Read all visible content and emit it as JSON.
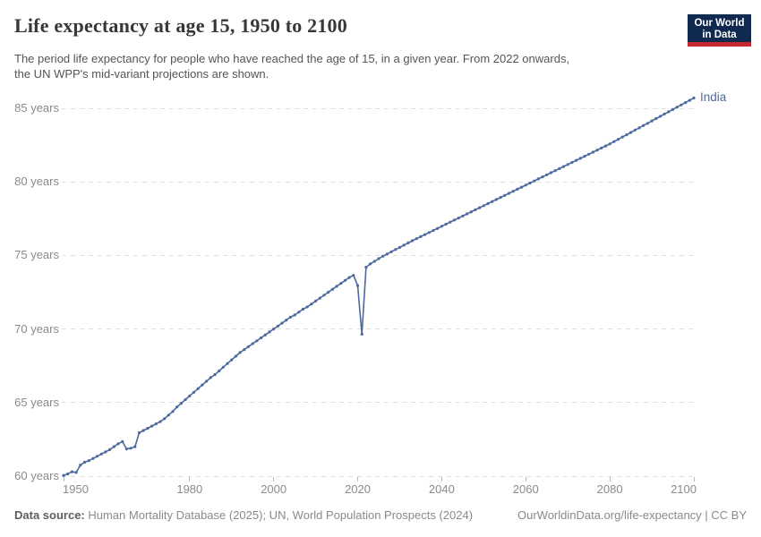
{
  "header": {
    "title": "Life expectancy at age 15, 1950 to 2100",
    "subtitle_lines": [
      "The period life expectancy for people who have reached the age of 15, in a given year. From 2022 onwards,",
      "the UN WPP's mid-variant projections are shown."
    ],
    "logo": {
      "line1": "Our World",
      "line2": "in Data",
      "bg_color": "#10294e",
      "accent_color": "#c4272e"
    }
  },
  "footer": {
    "source_label": "Data source:",
    "source_text": " Human Mortality Database (2025); UN, World Population Prospects (2024)",
    "link_text": "OurWorldinData.org/life-expectancy | CC BY"
  },
  "chart_data": {
    "type": "line",
    "title": "Life expectancy at age 15, 1950 to 2100",
    "xlabel": "",
    "ylabel": "",
    "grid": "horizontal-dashed",
    "legend_position": "end-of-line-label",
    "xlim": [
      1950,
      2100
    ],
    "ylim": [
      60,
      86
    ],
    "x_ticks": [
      1950,
      1980,
      2000,
      2020,
      2040,
      2060,
      2080,
      2100
    ],
    "y_ticks": [
      60,
      65,
      70,
      75,
      80,
      85
    ],
    "y_tick_suffix": " years",
    "grid_color": "#dedede",
    "tick_color": "#bbbbbb",
    "axis_text_color": "#8a8a8a",
    "x_years": {
      "start": 1950,
      "step": 1,
      "count": 151
    },
    "annotations": {
      "projection_note": "UN WPP mid-variant projection from 2022 onwards",
      "covid_dip_year": 2021,
      "covid_dip_value": 69.65
    },
    "series": [
      {
        "name": "India",
        "color": "#4C6A9C",
        "values": [
          60.05,
          60.15,
          60.3,
          60.25,
          60.75,
          60.95,
          61.05,
          61.2,
          61.35,
          61.5,
          61.65,
          61.8,
          62.0,
          62.2,
          62.35,
          61.85,
          61.9,
          62.0,
          62.95,
          63.1,
          63.25,
          63.4,
          63.55,
          63.7,
          63.9,
          64.15,
          64.4,
          64.7,
          64.95,
          65.2,
          65.45,
          65.7,
          65.95,
          66.2,
          66.45,
          66.7,
          66.9,
          67.15,
          67.4,
          67.65,
          67.9,
          68.15,
          68.4,
          68.6,
          68.8,
          69.0,
          69.2,
          69.4,
          69.6,
          69.8,
          70.0,
          70.2,
          70.4,
          70.6,
          70.8,
          70.95,
          71.15,
          71.35,
          71.5,
          71.7,
          71.9,
          72.1,
          72.3,
          72.5,
          72.7,
          72.9,
          73.1,
          73.3,
          73.5,
          73.65,
          72.95,
          69.65,
          74.2,
          74.42,
          74.6,
          74.78,
          74.95,
          75.1,
          75.25,
          75.4,
          75.55,
          75.7,
          75.85,
          76.0,
          76.14,
          76.28,
          76.42,
          76.56,
          76.7,
          76.84,
          76.98,
          77.12,
          77.26,
          77.4,
          77.54,
          77.68,
          77.82,
          77.96,
          78.1,
          78.24,
          78.38,
          78.52,
          78.66,
          78.8,
          78.94,
          79.08,
          79.22,
          79.36,
          79.5,
          79.64,
          79.78,
          79.92,
          80.06,
          80.2,
          80.34,
          80.48,
          80.62,
          80.76,
          80.9,
          81.04,
          81.18,
          81.32,
          81.46,
          81.6,
          81.74,
          81.88,
          82.02,
          82.16,
          82.3,
          82.44,
          82.58,
          82.74,
          82.89,
          83.05,
          83.2,
          83.36,
          83.52,
          83.67,
          83.83,
          83.98,
          84.14,
          84.3,
          84.45,
          84.61,
          84.76,
          84.92,
          85.08,
          85.23,
          85.39,
          85.54,
          85.7
        ]
      }
    ]
  }
}
